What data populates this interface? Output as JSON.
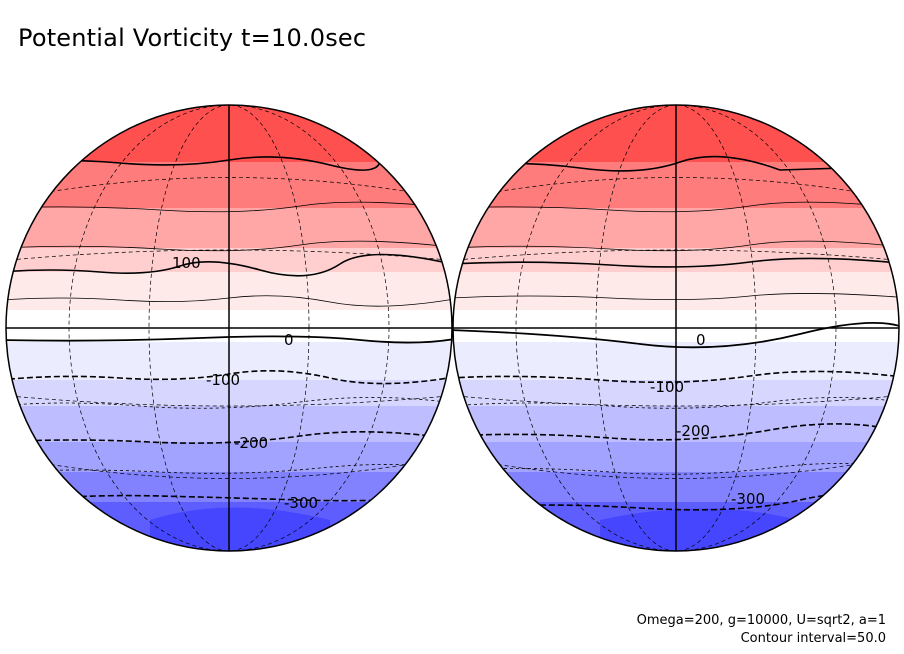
{
  "title": "Potential Vorticity t=10.0sec",
  "params_line1": "Omega=200, g=10000, U=sqrt2, a=1",
  "params_line2": "Contour interval=50.0",
  "colors": {
    "positive_max": "#ff3c3c",
    "negative_max": "#3c3cff",
    "neutral": "#ffffff",
    "line": "#000000"
  },
  "chart_data": {
    "type": "contour",
    "projection": "orthographic",
    "variable": "Potential Vorticity",
    "time": "t=10.0sec",
    "contour_interval": 50.0,
    "value_range": [
      -350,
      350
    ],
    "hemispheres": [
      {
        "name": "left-globe",
        "contour_labels": [
          "100",
          "0",
          "-100",
          "-200",
          "-300"
        ]
      },
      {
        "name": "right-globe",
        "contour_labels": [
          "0",
          "-100",
          "-200",
          "-300"
        ]
      }
    ]
  }
}
